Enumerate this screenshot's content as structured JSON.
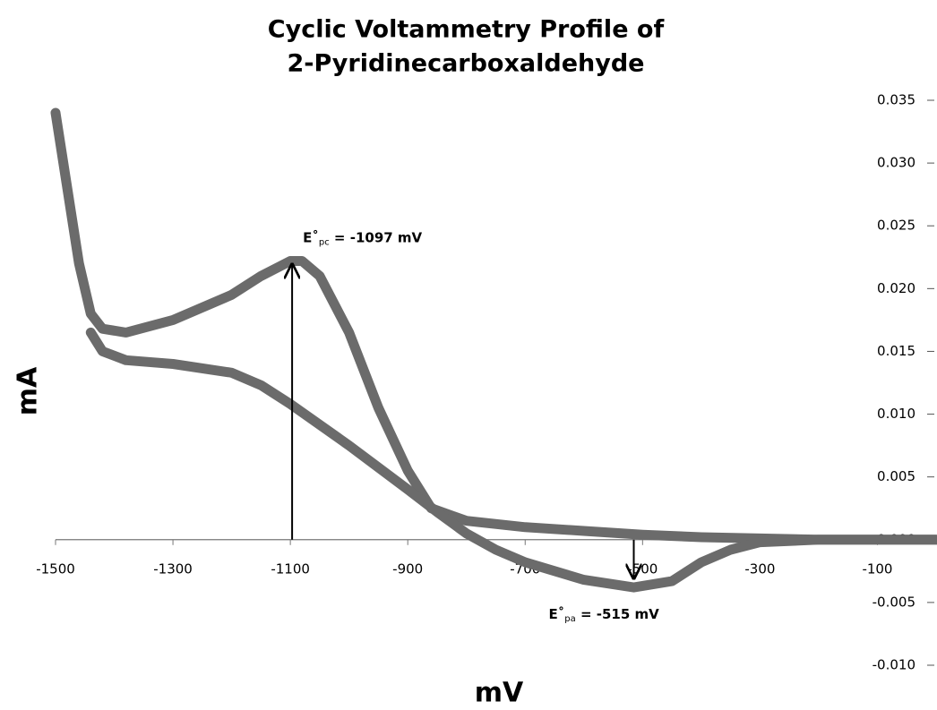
{
  "chart_data": {
    "type": "line",
    "title_lines": [
      "Cyclic Voltammetry Profile of",
      "2-Pyridinecarboxaldehyde"
    ],
    "x_label": "mV",
    "y_label": "mA",
    "xlim": [
      -1500,
      0
    ],
    "xticks": [
      -1500,
      -1300,
      -1100,
      -900,
      -700,
      -500,
      -300,
      -100
    ],
    "ylim": [
      -0.01,
      0.035
    ],
    "yticks": [
      {
        "value": -0.01,
        "label": "-0.010"
      },
      {
        "value": -0.005,
        "label": "-0.005"
      },
      {
        "value": 0,
        "label": "0.000"
      },
      {
        "value": 0.005,
        "label": "0.005"
      },
      {
        "value": 0.01,
        "label": "0.010"
      },
      {
        "value": 0.015,
        "label": "0.015"
      },
      {
        "value": 0.02,
        "label": "0.020"
      },
      {
        "value": 0.025,
        "label": "0.025"
      },
      {
        "value": 0.03,
        "label": "0.030"
      },
      {
        "value": 0.035,
        "label": "0.035"
      }
    ],
    "series": [
      {
        "color": "#6b6b6b",
        "x": [
          -1500,
          -1480,
          -1460,
          -1440,
          -1420,
          -1380,
          -1300,
          -1200,
          -1150,
          -1100,
          -1080,
          -1050,
          -1000,
          -950,
          -900,
          -860,
          -800,
          -700,
          -600,
          -500,
          -400,
          -300,
          -200,
          -100,
          0
        ],
        "values": [
          0.034,
          0.028,
          0.022,
          0.018,
          0.0168,
          0.0165,
          0.0175,
          0.0195,
          0.021,
          0.0222,
          0.0222,
          0.021,
          0.0165,
          0.0105,
          0.0055,
          0.0025,
          0.0015,
          0.001,
          0.0007,
          0.0004,
          0.0002,
          0.0001,
          0,
          0,
          0
        ]
      },
      {
        "color": "#6b6b6b",
        "x": [
          -1440,
          -1420,
          -1380,
          -1300,
          -1200,
          -1150,
          -1100,
          -1000,
          -900,
          -850,
          -800,
          -750,
          -700,
          -600,
          -515,
          -450,
          -400,
          -350,
          -300,
          -200,
          -100,
          0
        ],
        "values": [
          0.0165,
          0.015,
          0.0143,
          0.014,
          0.0133,
          0.0123,
          0.0108,
          0.0075,
          0.004,
          0.0022,
          0.0005,
          -0.0008,
          -0.0018,
          -0.0032,
          -0.0038,
          -0.0033,
          -0.0018,
          -0.0008,
          -0.0002,
          0,
          0,
          0
        ]
      }
    ],
    "annotations": [
      {
        "symbol": "E˚",
        "subscript": "pc",
        "text": " = -1097 mV",
        "x": -1097,
        "y": 0.0222
      },
      {
        "symbol": "E˚",
        "subscript": "pa",
        "text": " = -515 mV",
        "x": -515,
        "y": -0.0035
      }
    ]
  }
}
